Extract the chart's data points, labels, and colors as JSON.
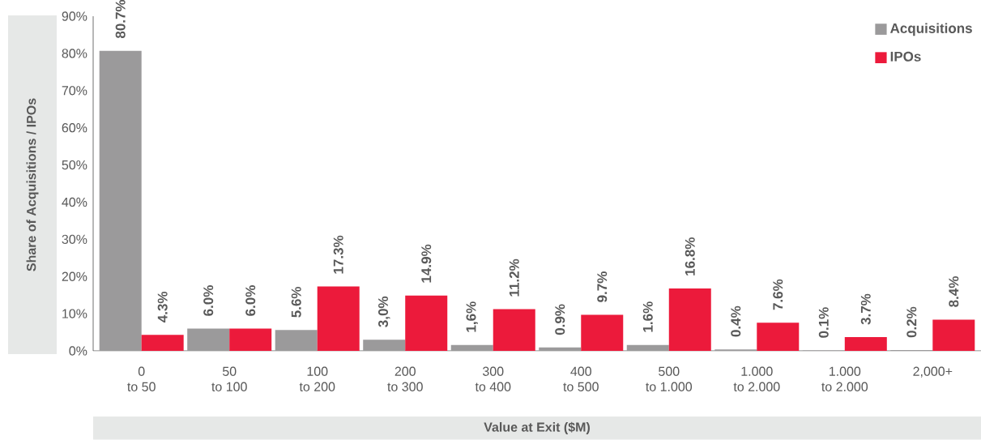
{
  "chart_data": {
    "type": "bar",
    "xlabel": "Value at Exit ($M)",
    "ylabel": "Share of Acquisitions / IPOs",
    "categories": [
      "0\nto 50",
      "50\nto 100",
      "100\nto 200",
      "200\nto 300",
      "300\nto 400",
      "400\nto 500",
      "500\nto 1.000",
      "1.000\nto 2.000",
      "1.000\nto 2.000",
      "2,000+"
    ],
    "series": [
      {
        "name": "Acquisitions",
        "color": "#9b9a9b",
        "values": [
          80.7,
          6.0,
          5.6,
          3.0,
          1.6,
          0.9,
          1.6,
          0.4,
          0.1,
          0.2
        ],
        "value_labels": [
          "80.7%",
          "6.0%",
          "5.6%",
          "3,0%",
          "1,6%",
          "0.9%",
          "1.6%",
          "0.4%",
          "0.1%",
          "0.2%"
        ]
      },
      {
        "name": "IPOs",
        "color": "#ec1a3b",
        "values": [
          4.3,
          6.0,
          17.3,
          14.9,
          11.2,
          9.7,
          16.8,
          7.6,
          3.7,
          8.4
        ],
        "value_labels": [
          "4.3%",
          "6.0%",
          "17.3%",
          "14.9%",
          "11.2%",
          "9.7%",
          "16.8%",
          "7.6%",
          "3.7%",
          "8.4%"
        ]
      }
    ],
    "ylim": [
      0,
      90
    ],
    "yticks": [
      {
        "value": 0,
        "label": "0%"
      },
      {
        "value": 10,
        "label": "10%"
      },
      {
        "value": 20,
        "label": "20%"
      },
      {
        "value": 30,
        "label": "30%"
      },
      {
        "value": 40,
        "label": "40%"
      },
      {
        "value": 50,
        "label": "50%"
      },
      {
        "value": 60,
        "label": "60%"
      },
      {
        "value": 70,
        "label": "70%"
      },
      {
        "value": 80,
        "label": "80%"
      },
      {
        "value": 90,
        "label": "90%"
      }
    ],
    "legend": "top right",
    "grid": false
  }
}
